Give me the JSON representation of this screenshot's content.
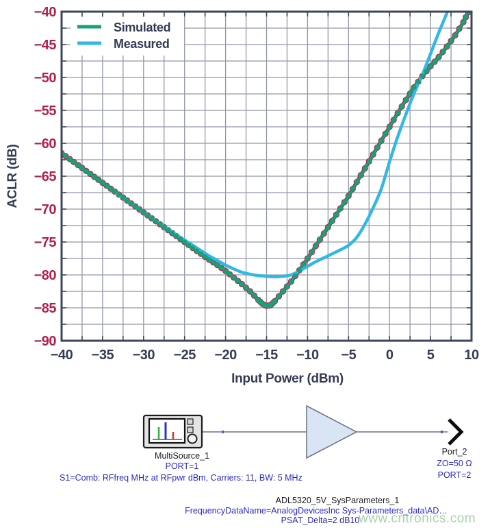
{
  "colors": {
    "curve_sim": "#16a278",
    "curve_sim_edge": "#c02048",
    "curve_meas": "#32b7e6",
    "tick_red": "#b02048",
    "text_navy": "#343b54",
    "grid": "#9298a8",
    "border": "#3e455a",
    "schematic_blue": "#2929cc",
    "schematic_dark": "#1a1a1a",
    "schematic_wire": "#4d5568",
    "amp_fill": "#d9e5f4",
    "watermark_green": "#9ccf9f"
  },
  "chart_data": {
    "type": "line",
    "title": "",
    "xlabel": "Input Power (dBm)",
    "ylabel": "ACLR (dB)",
    "xlim": [
      -40,
      10
    ],
    "ylim": [
      -90,
      -40
    ],
    "grid": "on, minor gridlines every 2.5 dB both axes",
    "legend_position": "top-left inside",
    "x_ticks": [
      -40,
      -35,
      -30,
      -25,
      -20,
      -15,
      -10,
      -5,
      0,
      5,
      10
    ],
    "x_tick_labels": [
      "−40",
      "−35",
      "−30",
      "−25",
      "−20",
      "−15",
      "−10",
      "−5",
      "0",
      "5",
      "10"
    ],
    "y_ticks": [
      -40,
      -45,
      -50,
      -55,
      -60,
      -65,
      -70,
      -75,
      -80,
      -85,
      -90
    ],
    "y_tick_labels": [
      "−40",
      "−45",
      "−50",
      "−55",
      "−60",
      "−65",
      "−70",
      "−75",
      "−80",
      "−85",
      "−90"
    ],
    "series": [
      {
        "name": "Simulated",
        "color": "#16a278",
        "edge_color": "#c02048",
        "marker": "circle",
        "points": [
          [
            -40,
            -61.5
          ],
          [
            -39,
            -62.4
          ],
          [
            -38,
            -63.3
          ],
          [
            -37,
            -64.2
          ],
          [
            -36,
            -65.1
          ],
          [
            -35,
            -66.0
          ],
          [
            -34,
            -66.9
          ],
          [
            -33,
            -67.8
          ],
          [
            -32,
            -68.7
          ],
          [
            -31,
            -69.6
          ],
          [
            -30,
            -70.5
          ],
          [
            -29,
            -71.4
          ],
          [
            -28,
            -72.3
          ],
          [
            -27,
            -73.2
          ],
          [
            -26,
            -74.1
          ],
          [
            -25,
            -75.0
          ],
          [
            -24,
            -75.9
          ],
          [
            -23,
            -76.8
          ],
          [
            -22,
            -77.7
          ],
          [
            -21,
            -78.5
          ],
          [
            -20,
            -79.4
          ],
          [
            -19,
            -80.4
          ],
          [
            -18,
            -81.4
          ],
          [
            -17,
            -82.5
          ],
          [
            -16,
            -83.8
          ],
          [
            -15.5,
            -84.4
          ],
          [
            -15,
            -84.7
          ],
          [
            -14.5,
            -84.6
          ],
          [
            -14,
            -84.0
          ],
          [
            -13,
            -82.5
          ],
          [
            -12,
            -81.0
          ],
          [
            -11,
            -79.3
          ],
          [
            -10,
            -77.5
          ],
          [
            -9,
            -75.6
          ],
          [
            -8,
            -73.7
          ],
          [
            -7,
            -71.8
          ],
          [
            -6,
            -69.9
          ],
          [
            -5,
            -68.0
          ],
          [
            -4,
            -65.9
          ],
          [
            -3,
            -63.8
          ],
          [
            -2,
            -61.7
          ],
          [
            -1,
            -59.6
          ],
          [
            0,
            -57.5
          ],
          [
            1,
            -55.4
          ],
          [
            2,
            -53.4
          ],
          [
            3,
            -51.5
          ],
          [
            4,
            -49.8
          ],
          [
            5,
            -48.3
          ],
          [
            6,
            -46.9
          ],
          [
            7,
            -45.3
          ],
          [
            8,
            -43.6
          ],
          [
            9,
            -41.6
          ],
          [
            9.6,
            -40.1
          ]
        ]
      },
      {
        "name": "Measured",
        "color": "#32b7e6",
        "marker": "none",
        "points": [
          [
            -33.5,
            -67.5
          ],
          [
            -33,
            -67.9
          ],
          [
            -32,
            -68.7
          ],
          [
            -31,
            -69.6
          ],
          [
            -30,
            -70.5
          ],
          [
            -29,
            -71.3
          ],
          [
            -28,
            -72.2
          ],
          [
            -27,
            -73.0
          ],
          [
            -26,
            -73.9
          ],
          [
            -25,
            -74.7
          ],
          [
            -24,
            -75.5
          ],
          [
            -23,
            -76.3
          ],
          [
            -22,
            -77.1
          ],
          [
            -21,
            -77.8
          ],
          [
            -20,
            -78.5
          ],
          [
            -19,
            -79.1
          ],
          [
            -18,
            -79.6
          ],
          [
            -17,
            -79.9
          ],
          [
            -16,
            -80.1
          ],
          [
            -15,
            -80.2
          ],
          [
            -14,
            -80.3
          ],
          [
            -13,
            -80.2
          ],
          [
            -12,
            -80.0
          ],
          [
            -11,
            -79.4
          ],
          [
            -10,
            -78.7
          ],
          [
            -9,
            -78.0
          ],
          [
            -8,
            -77.4
          ],
          [
            -7,
            -76.8
          ],
          [
            -6,
            -76.2
          ],
          [
            -5,
            -75.5
          ],
          [
            -4,
            -74.3
          ],
          [
            -3,
            -72.3
          ],
          [
            -2,
            -69.8
          ],
          [
            -1,
            -66.9
          ],
          [
            0,
            -62.8
          ],
          [
            1,
            -59.0
          ],
          [
            2,
            -55.6
          ],
          [
            3,
            -52.4
          ],
          [
            4,
            -49.6
          ],
          [
            5,
            -46.4
          ],
          [
            6,
            -43.2
          ],
          [
            7,
            -40.2
          ]
        ]
      }
    ]
  },
  "schematic": {
    "source": {
      "name": "MultiSource_1",
      "port_label": "PORT=1",
      "params": "S1=Comb: RFfreq MHz at RFpwr dBm, Carriers: 11, BW: 5 MHz"
    },
    "amplifier": {
      "name": "ADL5320_5V_SysParameters_1",
      "param1": "FrequencyDataName=AnalogDevicesInc Sys-Parameters_data\\AD…",
      "param2": "PSAT_Delta=2 dB10"
    },
    "port": {
      "name": "Port_2",
      "impedance": "ZO=50 Ω",
      "port_label": "PORT=2"
    }
  },
  "watermark": {
    "text": "www.cntronics.com"
  }
}
